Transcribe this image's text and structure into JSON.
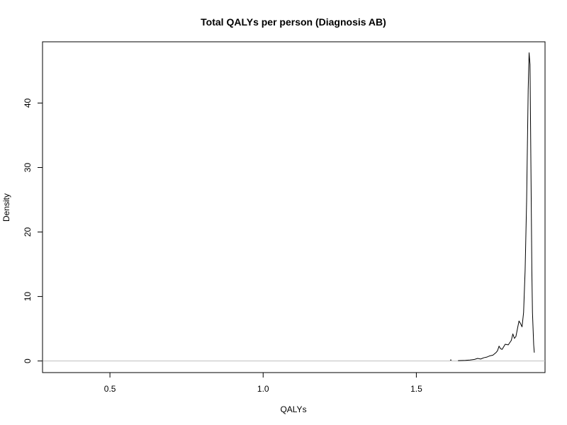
{
  "chart_data": {
    "type": "line",
    "title": "Total QALYs per person (Diagnosis AB)",
    "xlabel": "QALYs",
    "ylabel": "Density",
    "xlim": [
      0.28,
      1.92
    ],
    "ylim": [
      -1.8,
      49.5
    ],
    "x_ticks": [
      0.5,
      1.0,
      1.5
    ],
    "x_tick_labels": [
      "0.5",
      "1.0",
      "1.5"
    ],
    "y_ticks": [
      0,
      10,
      20,
      30,
      40
    ],
    "y_tick_labels": [
      "0",
      "10",
      "20",
      "30",
      "40"
    ],
    "baseline": 0,
    "grid": false,
    "legend": "none",
    "series": [
      {
        "color": "#000000",
        "points": [
          [
            1.61,
            0.15
          ],
          [
            1.615,
            0.15
          ],
          [
            1.636,
            0.05
          ],
          [
            1.66,
            0.1
          ],
          [
            1.675,
            0.15
          ],
          [
            1.69,
            0.25
          ],
          [
            1.7,
            0.4
          ],
          [
            1.71,
            0.3
          ],
          [
            1.72,
            0.5
          ],
          [
            1.73,
            0.6
          ],
          [
            1.74,
            0.8
          ],
          [
            1.75,
            0.9
          ],
          [
            1.76,
            1.3
          ],
          [
            1.765,
            1.6
          ],
          [
            1.77,
            2.3
          ],
          [
            1.775,
            1.9
          ],
          [
            1.78,
            1.8
          ],
          [
            1.79,
            2.6
          ],
          [
            1.8,
            2.5
          ],
          [
            1.81,
            3.2
          ],
          [
            1.815,
            4.2
          ],
          [
            1.82,
            3.5
          ],
          [
            1.825,
            3.8
          ],
          [
            1.83,
            5.0
          ],
          [
            1.835,
            6.2
          ],
          [
            1.84,
            5.8
          ],
          [
            1.845,
            5.3
          ],
          [
            1.85,
            7.5
          ],
          [
            1.855,
            14.0
          ],
          [
            1.86,
            25.0
          ],
          [
            1.865,
            42.0
          ],
          [
            1.868,
            47.8
          ],
          [
            1.871,
            46.0
          ],
          [
            1.874,
            30.0
          ],
          [
            1.877,
            14.0
          ],
          [
            1.879,
            7.5
          ],
          [
            1.881,
            5.0
          ],
          [
            1.883,
            2.5
          ],
          [
            1.885,
            1.3
          ]
        ]
      }
    ],
    "reference_line_color": "#bebebe"
  }
}
